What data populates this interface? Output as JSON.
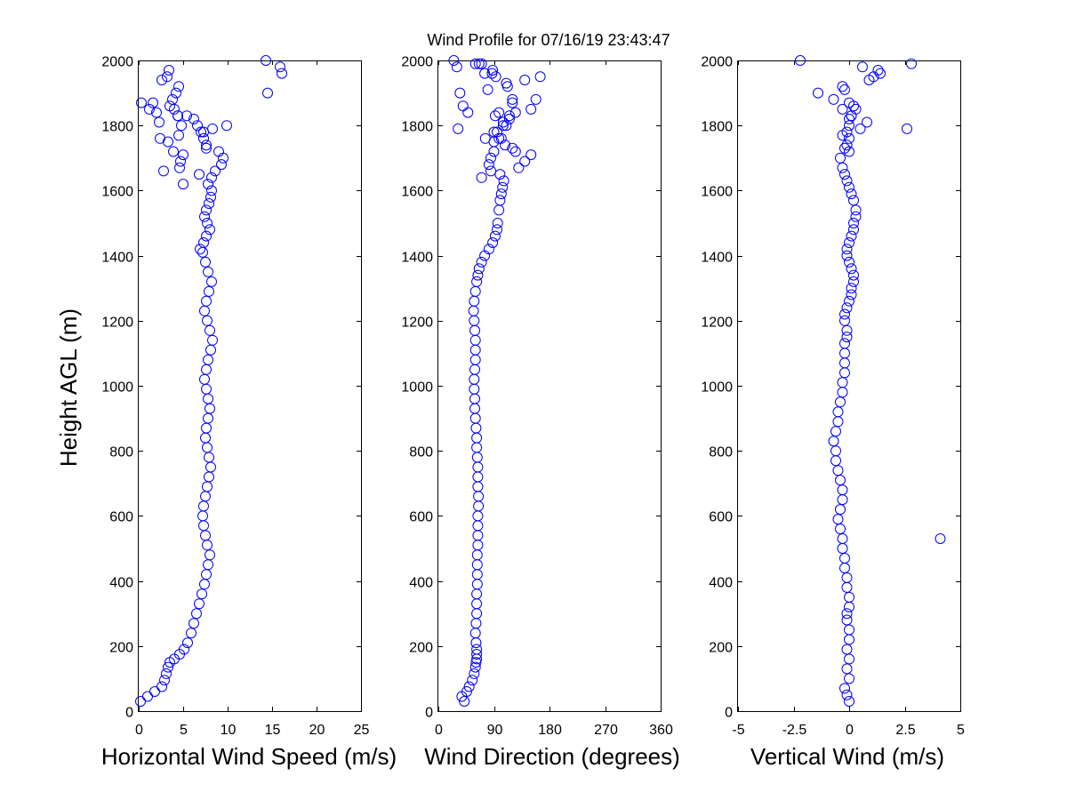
{
  "figure": {
    "title": "Wind Profile for  07/16/19 23:43:47",
    "marker_color": "#0000ff"
  },
  "chart_data": [
    {
      "type": "scatter",
      "id": "speed",
      "title": "",
      "xlabel": "Horizontal Wind Speed (m/s)",
      "ylabel": "Height AGL (m)",
      "xlim": [
        0,
        25
      ],
      "ylim": [
        0,
        2000
      ],
      "xticks": [
        0,
        5,
        10,
        15,
        20,
        25
      ],
      "xtick_labels": [
        "0",
        "5",
        "10",
        "15",
        "20",
        "25"
      ],
      "yticks": [
        0,
        200,
        400,
        600,
        800,
        1000,
        1200,
        1400,
        1600,
        1800,
        2000
      ],
      "ytick_labels": [
        "0",
        "200",
        "400",
        "600",
        "800",
        "1000",
        "1200",
        "1400",
        "1600",
        "1800",
        "2000"
      ],
      "series": [
        {
          "name": "Horizontal Wind Speed",
          "x": [
            0.2,
            1,
            1.8,
            2.6,
            2.9,
            3.1,
            3.3,
            3.5,
            4,
            4.6,
            5.1,
            5.5,
            5.9,
            6.2,
            6.5,
            6.8,
            7.1,
            7.4,
            7.6,
            7.8,
            8,
            7.7,
            7.5,
            7.3,
            7.2,
            7.3,
            7.5,
            7.7,
            7.9,
            8.1,
            7.9,
            7.7,
            7.5,
            7.6,
            7.8,
            8.0,
            7.8,
            7.6,
            7.4,
            7.6,
            7.8,
            8.1,
            8.3,
            8.0,
            7.7,
            7.4,
            7.6,
            7.9,
            8.2,
            7.8,
            7.5,
            7.2,
            6.9,
            7.3,
            7.6,
            8.0,
            7.7,
            7.4,
            7.6,
            7.9,
            8.1,
            8.2,
            7.8,
            8.2,
            8.6,
            9.3,
            9.5,
            9.0,
            7.6,
            7.3,
            7.0,
            6.6,
            6.2,
            4.4,
            4.0,
            3.5,
            3.8,
            4.2,
            4.5,
            2.6,
            3.2,
            3.4,
            5.4,
            6.8,
            4.6,
            7.3,
            5.0,
            3.9,
            7.6,
            8.3,
            9.9,
            3.3,
            4.7,
            5.0,
            0.3,
            1.2,
            2.0,
            2.3,
            4.4,
            1.6,
            4.8,
            2.4,
            4.5,
            2.8,
            14.5,
            16.1,
            15.9,
            14.3
          ],
          "y": [
            30,
            45,
            60,
            75,
            95,
            115,
            135,
            150,
            160,
            175,
            190,
            210,
            240,
            270,
            300,
            330,
            360,
            390,
            420,
            450,
            480,
            510,
            540,
            570,
            600,
            630,
            660,
            690,
            720,
            750,
            780,
            810,
            840,
            870,
            900,
            930,
            960,
            990,
            1020,
            1050,
            1080,
            1110,
            1140,
            1170,
            1200,
            1230,
            1260,
            1290,
            1320,
            1350,
            1380,
            1410,
            1420,
            1440,
            1460,
            1480,
            1500,
            1520,
            1540,
            1560,
            1580,
            1600,
            1620,
            1640,
            1660,
            1680,
            1700,
            1720,
            1740,
            1760,
            1780,
            1800,
            1820,
            1830,
            1850,
            1860,
            1880,
            1900,
            1920,
            1940,
            1950,
            1970,
            1830,
            1650,
            1670,
            1780,
            1710,
            1720,
            1730,
            1790,
            1800,
            1750,
            1690,
            1620,
            1870,
            1850,
            1840,
            1810,
            1830,
            1870,
            1800,
            1760,
            1770,
            1660,
            1900,
            1960,
            1980,
            2000
          ]
        }
      ]
    },
    {
      "type": "scatter",
      "id": "direction",
      "title": "",
      "xlabel": "Wind Direction (degrees)",
      "ylabel": "",
      "xlim": [
        0,
        360
      ],
      "ylim": [
        0,
        2000
      ],
      "xticks": [
        0,
        90,
        180,
        270,
        360
      ],
      "xtick_labels": [
        "0",
        "90",
        "180",
        "270",
        "360"
      ],
      "yticks": [
        0,
        200,
        400,
        600,
        800,
        1000,
        1200,
        1400,
        1600,
        1800,
        2000
      ],
      "ytick_labels": [
        "0",
        "200",
        "400",
        "600",
        "800",
        "1000",
        "1200",
        "1400",
        "1600",
        "1800",
        "2000"
      ],
      "series": [
        {
          "name": "Wind Direction",
          "x": [
            42,
            38,
            46,
            50,
            55,
            58,
            60,
            61,
            62,
            62,
            62,
            61,
            60,
            61,
            62,
            62,
            62,
            63,
            63,
            63,
            63,
            64,
            64,
            64,
            64,
            65,
            65,
            64,
            64,
            64,
            63,
            62,
            62,
            61,
            60,
            59,
            59,
            58,
            58,
            59,
            60,
            60,
            60,
            59,
            58,
            57,
            58,
            60,
            62,
            64,
            66,
            70,
            75,
            82,
            88,
            92,
            95,
            96,
            98,
            100,
            102,
            104,
            106,
            70,
            85,
            90,
            76,
            95,
            110,
            115,
            82,
            90,
            98,
            105,
            115,
            120,
            150,
            140,
            130,
            125,
            120,
            108,
            102,
            90,
            105,
            92,
            98,
            120,
            80,
            87,
            75,
            70,
            60,
            66,
            40,
            32,
            48,
            35,
            30,
            25,
            110,
            93,
            88,
            85,
            100,
            112,
            140,
            165,
            150,
            125,
            158
          ],
          "y": [
            30,
            45,
            60,
            75,
            95,
            115,
            135,
            150,
            160,
            175,
            190,
            210,
            240,
            270,
            300,
            330,
            360,
            390,
            420,
            450,
            480,
            510,
            540,
            570,
            600,
            630,
            660,
            690,
            720,
            750,
            780,
            810,
            840,
            870,
            900,
            930,
            960,
            990,
            1020,
            1050,
            1080,
            1110,
            1140,
            1170,
            1200,
            1230,
            1260,
            1290,
            1320,
            1340,
            1360,
            1380,
            1400,
            1420,
            1440,
            1460,
            1480,
            1500,
            1540,
            1570,
            1590,
            1610,
            1630,
            1640,
            1700,
            1720,
            1760,
            1780,
            1800,
            1830,
            1680,
            1750,
            1760,
            1810,
            1820,
            1870,
            1710,
            1690,
            1670,
            1720,
            1730,
            1740,
            1760,
            1780,
            1800,
            1830,
            1840,
            1880,
            1910,
            1960,
            1960,
            1990,
            1990,
            1990,
            1860,
            1790,
            1840,
            1900,
            1980,
            2000,
            1930,
            1950,
            1970,
            1660,
            1650,
            1920,
            1940,
            1950,
            1850,
            1840,
            1880
          ]
        }
      ]
    },
    {
      "type": "scatter",
      "id": "vertical",
      "title": "",
      "xlabel": "Vertical Wind (m/s)",
      "ylabel": "",
      "xlim": [
        -5,
        5
      ],
      "ylim": [
        0,
        2000
      ],
      "xticks": [
        -5,
        -2.5,
        0,
        2.5,
        5
      ],
      "xtick_labels": [
        "-5",
        "-2.5",
        "0",
        "2.5",
        "5"
      ],
      "yticks": [
        0,
        200,
        400,
        600,
        800,
        1000,
        1200,
        1400,
        1600,
        1800,
        2000
      ],
      "ytick_labels": [
        "0",
        "200",
        "400",
        "600",
        "800",
        "1000",
        "1200",
        "1400",
        "1600",
        "1800",
        "2000"
      ],
      "series": [
        {
          "name": "Vertical Wind",
          "x": [
            0,
            -0.1,
            -0.2,
            0,
            -0.1,
            0,
            -0.1,
            0,
            0,
            -0.1,
            -0.1,
            0,
            0,
            -0.1,
            -0.1,
            -0.2,
            -0.2,
            -0.3,
            -0.3,
            -0.4,
            -0.5,
            -0.4,
            -0.3,
            -0.3,
            -0.4,
            -0.5,
            -0.6,
            -0.6,
            -0.7,
            -0.6,
            -0.5,
            -0.5,
            -0.4,
            -0.3,
            -0.3,
            -0.2,
            -0.2,
            -0.2,
            -0.2,
            -0.1,
            -0.1,
            -0.2,
            -0.2,
            -0.1,
            0,
            0.1,
            0.1,
            0.2,
            0.2,
            0.1,
            0.0,
            -0.1,
            -0.1,
            0,
            0.1,
            0.2,
            0.2,
            0.3,
            0.3,
            0.2,
            0.1,
            0.0,
            -0.1,
            -0.2,
            -0.3,
            -0.4,
            -0.2,
            0.0,
            -0.1,
            0.0,
            0.1,
            -0.3,
            -0.1,
            0.5,
            0.8,
            0.2,
            0.0,
            -0.3,
            0.1,
            0.6,
            0.9,
            1.1,
            1.4,
            -1.4,
            -2.2,
            -0.7,
            -0.3,
            1.3,
            2.6,
            4.1,
            2.8,
            0.0,
            0.3,
            -0.2,
            0.0
          ],
          "y": [
            30,
            50,
            70,
            100,
            130,
            160,
            190,
            220,
            250,
            280,
            300,
            320,
            350,
            380,
            410,
            440,
            470,
            500,
            530,
            560,
            590,
            620,
            650,
            680,
            710,
            740,
            770,
            800,
            830,
            860,
            890,
            920,
            950,
            980,
            1010,
            1040,
            1070,
            1100,
            1130,
            1150,
            1170,
            1200,
            1220,
            1240,
            1260,
            1280,
            1300,
            1320,
            1340,
            1360,
            1380,
            1400,
            1420,
            1440,
            1460,
            1480,
            1500,
            1520,
            1540,
            1570,
            1590,
            1610,
            1630,
            1650,
            1670,
            1700,
            1730,
            1760,
            1780,
            1800,
            1830,
            1770,
            1740,
            1790,
            1810,
            1860,
            1870,
            1850,
            1830,
            1980,
            1940,
            1950,
            1960,
            1900,
            2000,
            1880,
            1920,
            1970,
            1790,
            530,
            1990,
            1820,
            1850,
            1910,
            1720
          ]
        }
      ]
    }
  ]
}
